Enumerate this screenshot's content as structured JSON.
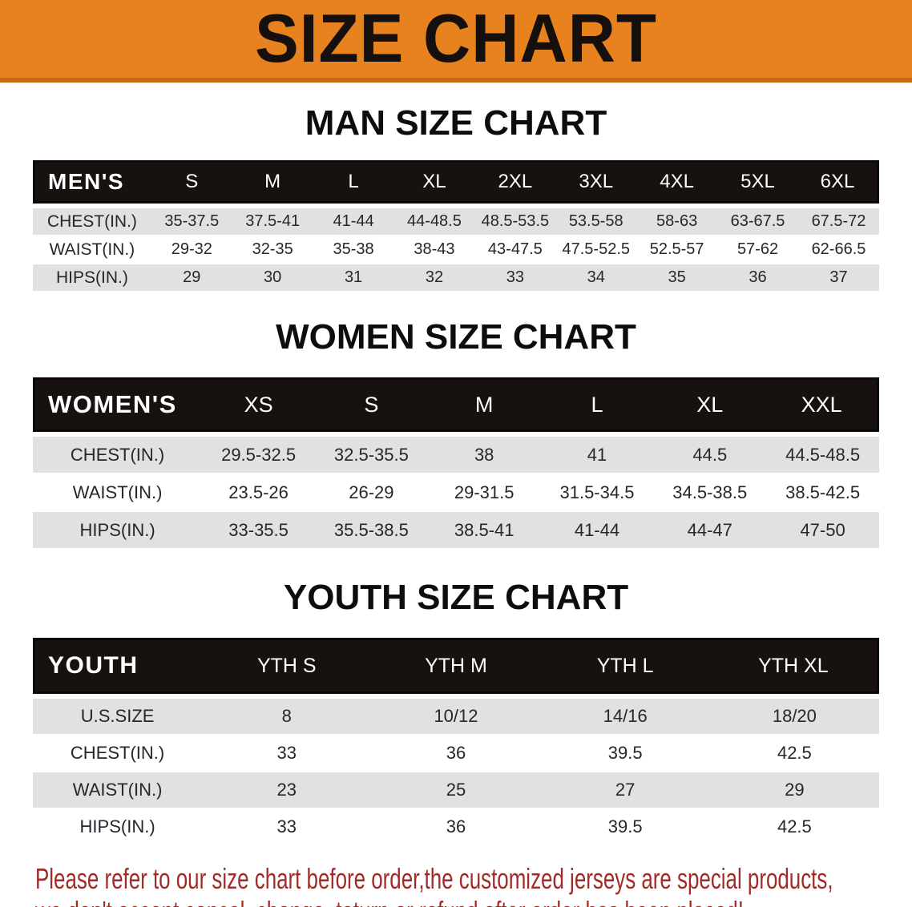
{
  "banner": {
    "title": "SIZE CHART",
    "bg_color": "#E8821E",
    "text_color": "#15100D"
  },
  "colors": {
    "table_header_bg": "#17110F",
    "table_header_text": "#FFFFFF",
    "shaded_row_bg": "#E1E1E1",
    "note_text": "#A12C27"
  },
  "sections": [
    {
      "heading": "MAN SIZE CHART",
      "table": {
        "header_label": "MEN'S",
        "columns": [
          "S",
          "M",
          "L",
          "XL",
          "2XL",
          "3XL",
          "4XL",
          "5XL",
          "6XL"
        ],
        "rows": [
          {
            "label": "CHEST(IN.)",
            "values": [
              "35-37.5",
              "37.5-41",
              "41-44",
              "44-48.5",
              "48.5-53.5",
              "53.5-58",
              "58-63",
              "63-67.5",
              "67.5-72"
            ]
          },
          {
            "label": "WAIST(IN.)",
            "values": [
              "29-32",
              "32-35",
              "35-38",
              "38-43",
              "43-47.5",
              "47.5-52.5",
              "52.5-57",
              "57-62",
              "62-66.5"
            ]
          },
          {
            "label": "HIPS(IN.)",
            "values": [
              "29",
              "30",
              "31",
              "32",
              "33",
              "34",
              "35",
              "36",
              "37"
            ]
          }
        ]
      }
    },
    {
      "heading": "WOMEN SIZE CHART",
      "table": {
        "header_label": "WOMEN'S",
        "columns": [
          "XS",
          "S",
          "M",
          "L",
          "XL",
          "XXL"
        ],
        "rows": [
          {
            "label": "CHEST(IN.)",
            "values": [
              "29.5-32.5",
              "32.5-35.5",
              "38",
              "41",
              "44.5",
              "44.5-48.5"
            ]
          },
          {
            "label": "WAIST(IN.)",
            "values": [
              "23.5-26",
              "26-29",
              "29-31.5",
              "31.5-34.5",
              "34.5-38.5",
              "38.5-42.5"
            ]
          },
          {
            "label": "HIPS(IN.)",
            "values": [
              "33-35.5",
              "35.5-38.5",
              "38.5-41",
              "41-44",
              "44-47",
              "47-50"
            ]
          }
        ]
      }
    },
    {
      "heading": "YOUTH SIZE CHART",
      "table": {
        "header_label": "YOUTH",
        "columns": [
          "YTH S",
          "YTH M",
          "YTH L",
          "YTH XL"
        ],
        "rows": [
          {
            "label": "U.S.SIZE",
            "values": [
              "8",
              "10/12",
              "14/16",
              "18/20"
            ]
          },
          {
            "label": "CHEST(IN.)",
            "values": [
              "33",
              "36",
              "39.5",
              "42.5"
            ]
          },
          {
            "label": "WAIST(IN.)",
            "values": [
              "23",
              "25",
              "27",
              "29"
            ]
          },
          {
            "label": "HIPS(IN.)",
            "values": [
              "33",
              "36",
              "39.5",
              "42.5"
            ]
          }
        ]
      }
    }
  ],
  "note": {
    "line1": "Please refer to our size chart before order,the customized jerseys are special products,",
    "line2": "we don't accept cancel, change, teturn or refund after order has been placed!"
  }
}
